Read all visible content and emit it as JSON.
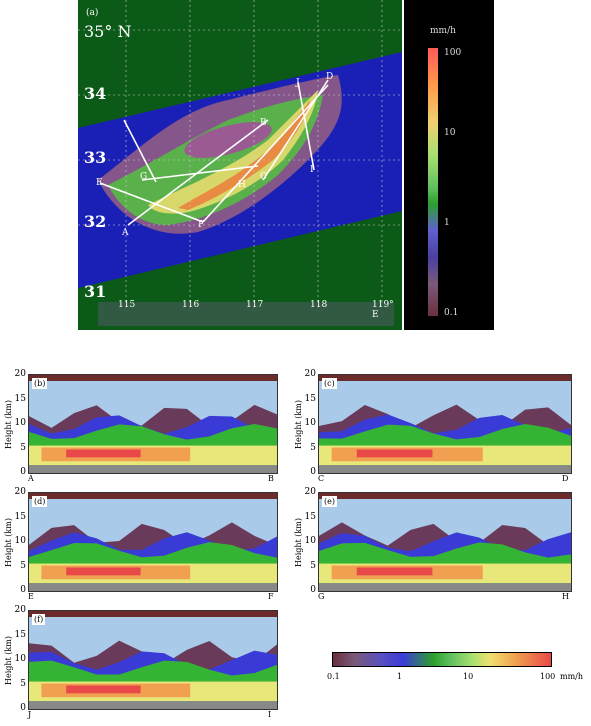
{
  "map": {
    "tag": "(a)",
    "lat_title": "35° N",
    "lat_labels": [
      "34",
      "33",
      "32",
      "31"
    ],
    "lon_labels": [
      "115",
      "116",
      "117",
      "118",
      "119° E"
    ],
    "points": [
      "D",
      "J",
      "B",
      "C",
      "H",
      "I",
      "E",
      "G",
      "A",
      "F"
    ]
  },
  "colorbar": {
    "unit": "mm/h",
    "ticks": [
      "100",
      "10",
      "1",
      "0.1"
    ]
  },
  "sections": [
    {
      "tag": "(b)",
      "left": "A",
      "right": "B"
    },
    {
      "tag": "(c)",
      "left": "C",
      "right": "D"
    },
    {
      "tag": "(d)",
      "left": "E",
      "right": "F"
    },
    {
      "tag": "(e)",
      "left": "G",
      "right": "H"
    },
    {
      "tag": "(f)",
      "left": "J",
      "right": "I"
    }
  ],
  "yaxis": {
    "label": "Height (km)",
    "ticks": [
      "20",
      "15",
      "10",
      "5",
      "0"
    ]
  },
  "hbar": {
    "ticks": [
      "0.1",
      "1",
      "10",
      "100"
    ],
    "unit": "mm/h"
  },
  "colors": {
    "purple": "#73525f",
    "brown": "#6b2b2b",
    "blue": "#3a3ad6",
    "green": "#35b335",
    "yellow": "#e8e87a",
    "orange": "#f0a050",
    "red": "#e84848",
    "sky": "#a9cbe9"
  }
}
